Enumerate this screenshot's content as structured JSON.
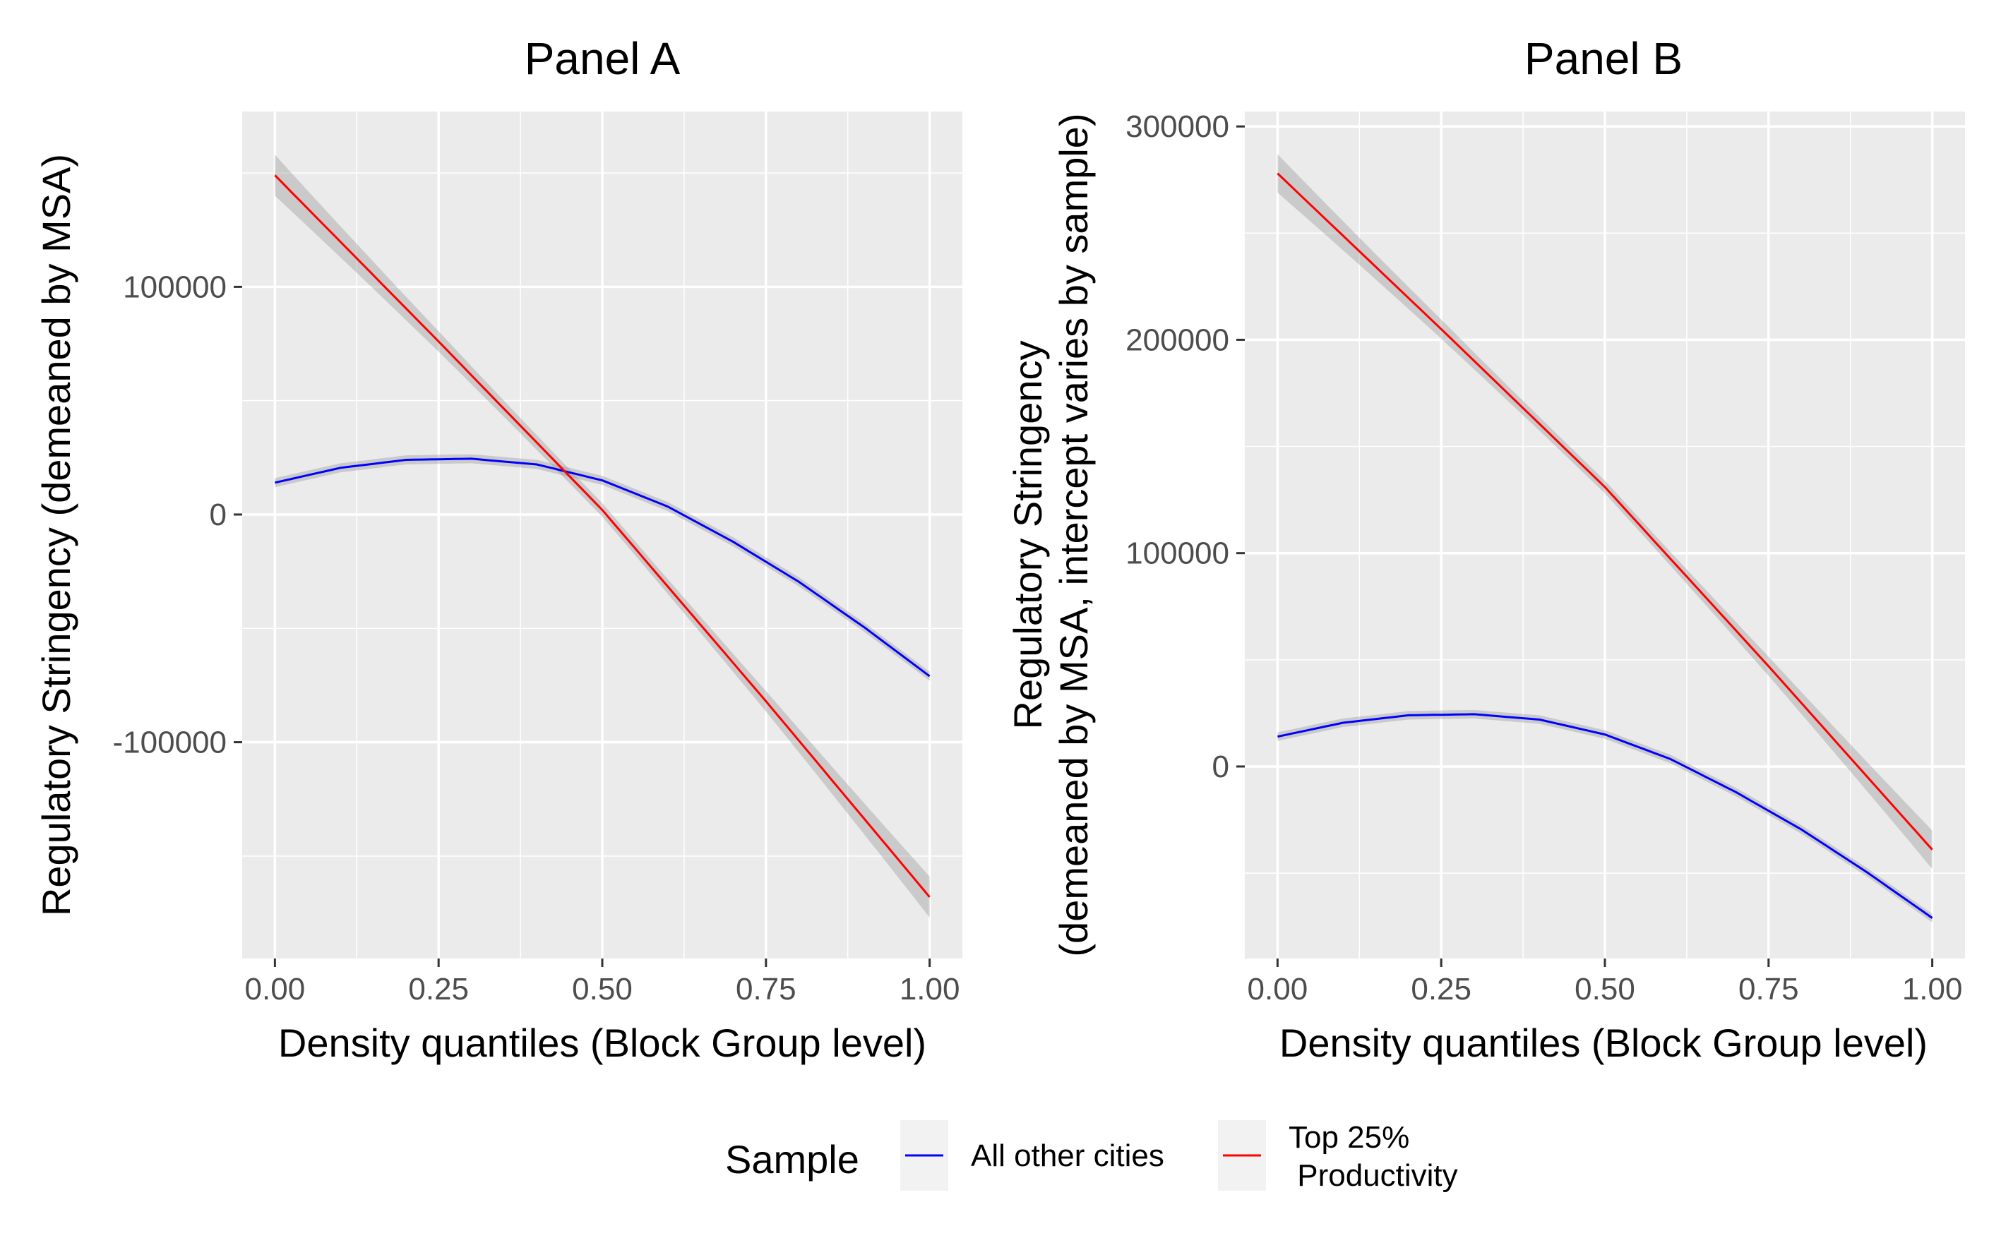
{
  "chart_data": [
    {
      "type": "line",
      "title": "Panel A",
      "xlabel": "Density quantiles (Block Group level)",
      "ylabel": "Regulatory Stringency (demeaned by MSA)",
      "xlim": [
        -0.05,
        1.05
      ],
      "ylim": [
        -195000,
        177000
      ],
      "x_ticks": [
        0.0,
        0.25,
        0.5,
        0.75,
        1.0
      ],
      "x_tick_labels": [
        "0.00",
        "0.25",
        "0.50",
        "0.75",
        "1.00"
      ],
      "y_ticks": [
        -100000,
        0,
        100000
      ],
      "y_tick_labels": [
        "-100000",
        "0",
        "100000"
      ],
      "grid": true,
      "series": [
        {
          "name": "All other cities",
          "color": "#0000FF",
          "band_halfwidth": 2000,
          "x": [
            0.0,
            0.1,
            0.2,
            0.3,
            0.4,
            0.5,
            0.6,
            0.7,
            0.8,
            0.9,
            1.0
          ],
          "y": [
            14000,
            20500,
            24000,
            24500,
            22000,
            15000,
            3500,
            -12000,
            -29500,
            -49500,
            -71000
          ]
        },
        {
          "name": "Top 25%\n Productivity",
          "color": "#FF0000",
          "band_halfwidth_edge": 9000,
          "band_halfwidth_mid": 3000,
          "x": [
            0.0,
            0.25,
            0.5,
            0.75,
            1.0
          ],
          "y": [
            149000,
            76000,
            2000,
            -82000,
            -168000
          ]
        }
      ]
    },
    {
      "type": "line",
      "title": "Panel B",
      "xlabel": "Density quantiles (Block Group level)",
      "ylabel_lines": [
        "Regulatory Stringency",
        "(demeaned by MSA, intercept varies by sample)"
      ],
      "xlim": [
        -0.05,
        1.05
      ],
      "ylim": [
        -90000,
        307000
      ],
      "x_ticks": [
        0.0,
        0.25,
        0.5,
        0.75,
        1.0
      ],
      "x_tick_labels": [
        "0.00",
        "0.25",
        "0.50",
        "0.75",
        "1.00"
      ],
      "y_ticks": [
        0,
        100000,
        200000,
        300000
      ],
      "y_tick_labels": [
        "0",
        "100000",
        "200000",
        "300000"
      ],
      "grid": true,
      "series": [
        {
          "name": "All other cities",
          "color": "#0000FF",
          "band_halfwidth": 2000,
          "x": [
            0.0,
            0.1,
            0.2,
            0.3,
            0.4,
            0.5,
            0.6,
            0.7,
            0.8,
            0.9,
            1.0
          ],
          "y": [
            14000,
            20500,
            24000,
            24500,
            22000,
            15000,
            3500,
            -12000,
            -29500,
            -49500,
            -71000
          ]
        },
        {
          "name": "Top 25%\n Productivity",
          "color": "#FF0000",
          "band_halfwidth_edge": 9000,
          "band_halfwidth_mid": 3000,
          "x": [
            0.0,
            0.25,
            0.5,
            0.75,
            1.0
          ],
          "y": [
            278000,
            205000,
            131000,
            47000,
            -39000
          ]
        }
      ]
    }
  ],
  "legend": {
    "title": "Sample",
    "position": "bottom",
    "items": [
      {
        "label": "All other cities",
        "color": "#0000FF"
      },
      {
        "label_lines": [
          "Top 25%",
          " Productivity"
        ],
        "color": "#FF0000"
      }
    ]
  },
  "colors": {
    "panel_background": "#EBEBEB",
    "grid_major": "#FFFFFF",
    "band_fill": "#999999"
  }
}
